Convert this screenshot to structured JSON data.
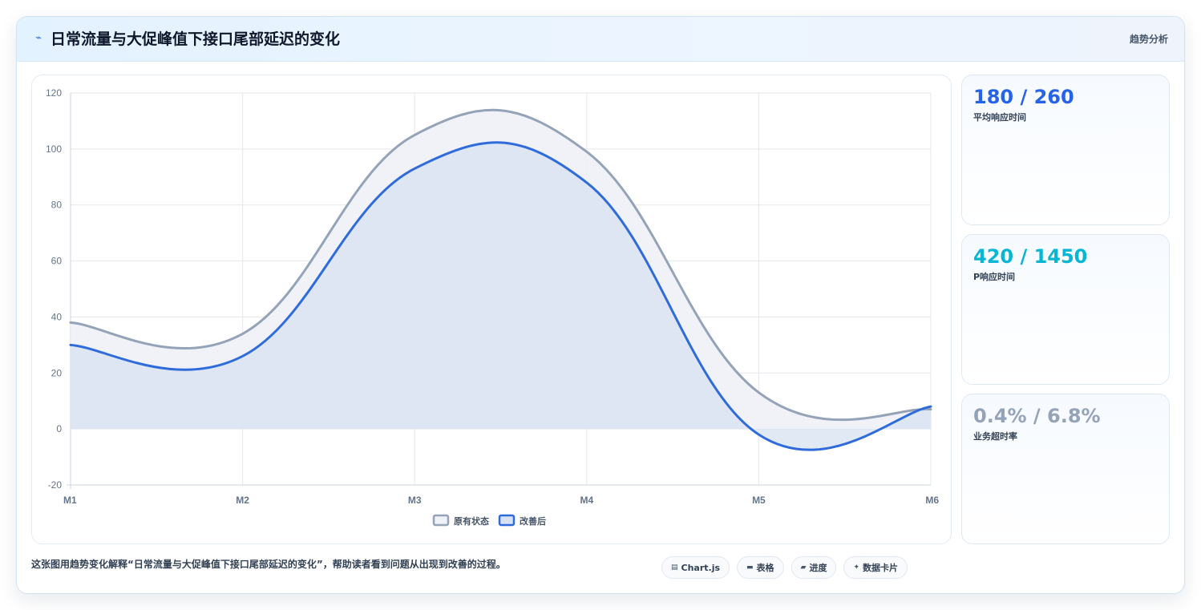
{
  "header": {
    "icon": "pulse-icon",
    "title": "日常流量与大促峰值下接口尾部延迟的变化",
    "tag": "趋势分析"
  },
  "chart_data": {
    "type": "line",
    "categories": [
      "M1",
      "M2",
      "M3",
      "M4",
      "M5",
      "M6"
    ],
    "ylim": [
      -20,
      120
    ],
    "yticks": [
      -20,
      0,
      20,
      40,
      60,
      80,
      100,
      120
    ],
    "grid": true,
    "legend_position": "bottom",
    "series": [
      {
        "name": "原有状态",
        "values": [
          38,
          34,
          105,
          99,
          13,
          7
        ],
        "color": "#94a3b8",
        "fill": "#eef1f7"
      },
      {
        "name": "改善后",
        "values": [
          30,
          26,
          93,
          88,
          -2,
          8
        ],
        "color": "#2f6bdb",
        "fill": "#d7e1f0"
      }
    ]
  },
  "stats": [
    {
      "value": "180 / 260",
      "label": "平均响应时间",
      "color": "#2563eb"
    },
    {
      "value": "420 / 1450",
      "label": "P响应时间",
      "color": "#06b6d4"
    },
    {
      "value": "0.4% / 6.8%",
      "label": "业务超时率",
      "color": "#94a3b8"
    }
  ],
  "footer": {
    "description": "这张图用趋势变化解释“日常流量与大促峰值下接口尾部延迟的变化”，帮助读者看到问题从出现到改善的过程。",
    "chips": [
      {
        "icon": "chart-icon",
        "glyph": "▤",
        "label": "Chart.js"
      },
      {
        "icon": "table-icon",
        "glyph": "▬",
        "label": "表格"
      },
      {
        "icon": "progress-icon",
        "glyph": "▰",
        "label": "进度"
      },
      {
        "icon": "card-icon",
        "glyph": "✦",
        "label": "数据卡片"
      }
    ]
  }
}
